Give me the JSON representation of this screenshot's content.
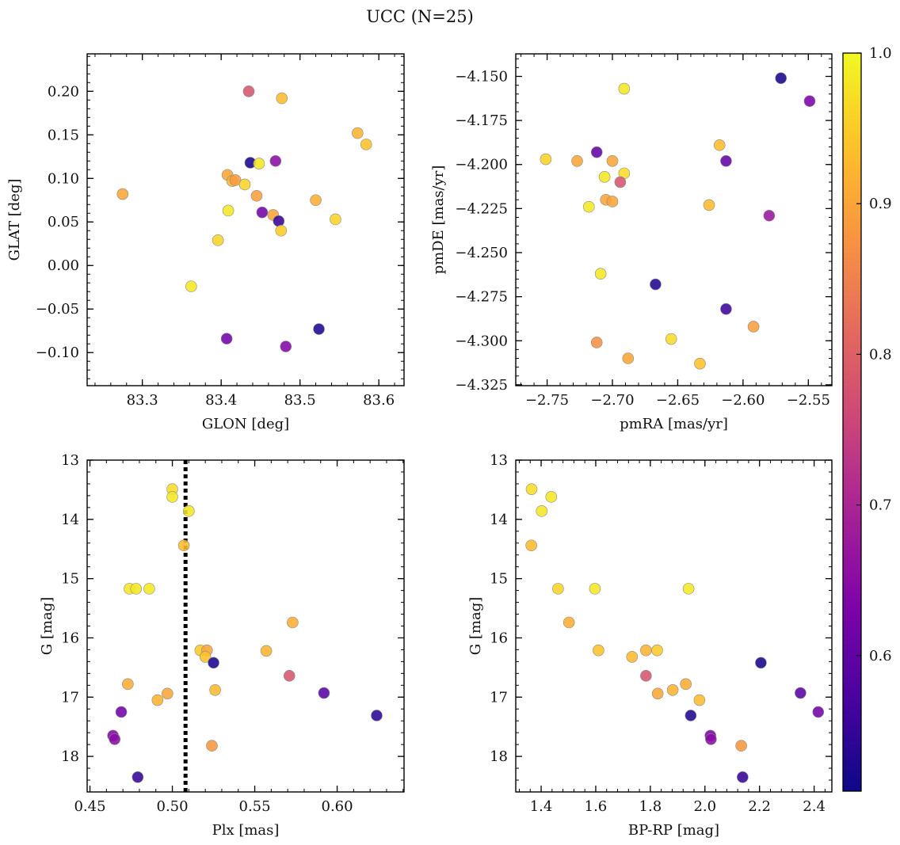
{
  "title": "UCC (N=25)",
  "colorbar": {
    "range": [
      0.51,
      1.0
    ],
    "ticks": [
      0.6,
      0.7,
      0.8,
      0.9,
      1.0
    ],
    "tick_labels": [
      "0.6",
      "0.7",
      "0.8",
      "0.9",
      "1.0"
    ],
    "colormap": "plasma"
  },
  "chart_data": [
    {
      "type": "scatter",
      "xlabel": "GLON [deg]",
      "ylabel": "GLAT [deg]",
      "xlim": [
        83.23,
        83.632
      ],
      "ylim": [
        -0.138,
        0.243
      ],
      "xticks": [
        83.3,
        83.4,
        83.5,
        83.6
      ],
      "xtick_labels": [
        "83.3",
        "83.4",
        "83.5",
        "83.6"
      ],
      "yticks": [
        -0.1,
        -0.05,
        0.0,
        0.05,
        0.1,
        0.15,
        0.2
      ],
      "ytick_labels": [
        "−0.10",
        "−0.05",
        "0.00",
        "0.05",
        "0.10",
        "0.15",
        "0.20"
      ],
      "points": [
        {
          "x": 83.435,
          "y": 0.2,
          "c": 0.78
        },
        {
          "x": 83.477,
          "y": 0.192,
          "c": 0.93
        },
        {
          "x": 83.573,
          "y": 0.152,
          "c": 0.92
        },
        {
          "x": 83.584,
          "y": 0.139,
          "c": 0.94
        },
        {
          "x": 83.437,
          "y": 0.118,
          "c": 0.52
        },
        {
          "x": 83.448,
          "y": 0.117,
          "c": 0.98
        },
        {
          "x": 83.469,
          "y": 0.12,
          "c": 0.65
        },
        {
          "x": 83.408,
          "y": 0.104,
          "c": 0.9
        },
        {
          "x": 83.414,
          "y": 0.097,
          "c": 0.92
        },
        {
          "x": 83.418,
          "y": 0.098,
          "c": 0.89
        },
        {
          "x": 83.43,
          "y": 0.093,
          "c": 0.96
        },
        {
          "x": 83.275,
          "y": 0.082,
          "c": 0.9
        },
        {
          "x": 83.445,
          "y": 0.08,
          "c": 0.89
        },
        {
          "x": 83.52,
          "y": 0.075,
          "c": 0.91
        },
        {
          "x": 83.409,
          "y": 0.063,
          "c": 0.98
        },
        {
          "x": 83.452,
          "y": 0.061,
          "c": 0.62
        },
        {
          "x": 83.466,
          "y": 0.058,
          "c": 0.9
        },
        {
          "x": 83.545,
          "y": 0.053,
          "c": 0.96
        },
        {
          "x": 83.473,
          "y": 0.051,
          "c": 0.55
        },
        {
          "x": 83.476,
          "y": 0.04,
          "c": 0.95
        },
        {
          "x": 83.396,
          "y": 0.029,
          "c": 0.96
        },
        {
          "x": 83.362,
          "y": -0.024,
          "c": 0.98
        },
        {
          "x": 83.524,
          "y": -0.073,
          "c": 0.53
        },
        {
          "x": 83.407,
          "y": -0.084,
          "c": 0.62
        },
        {
          "x": 83.482,
          "y": -0.093,
          "c": 0.64
        }
      ]
    },
    {
      "type": "scatter",
      "xlabel": "pmRA [mas/yr]",
      "ylabel": "pmDE [mas/yr]",
      "xlim": [
        -2.774,
        -2.532
      ],
      "ylim": [
        -4.3255,
        -4.1372
      ],
      "xticks": [
        -2.75,
        -2.7,
        -2.65,
        -2.6,
        -2.55
      ],
      "xtick_labels": [
        "−2.75",
        "−2.70",
        "−2.65",
        "−2.60",
        "−2.55"
      ],
      "yticks": [
        -4.325,
        -4.3,
        -4.275,
        -4.25,
        -4.225,
        -4.2,
        -4.175,
        -4.15
      ],
      "ytick_labels": [
        "−4.325",
        "−4.300",
        "−4.275",
        "−4.250",
        "−4.225",
        "−4.200",
        "−4.175",
        "−4.150"
      ],
      "points": [
        {
          "x": -2.571,
          "y": -4.151,
          "c": 0.52
        },
        {
          "x": -2.549,
          "y": -4.164,
          "c": 0.63
        },
        {
          "x": -2.691,
          "y": -4.157,
          "c": 0.98
        },
        {
          "x": -2.618,
          "y": -4.189,
          "c": 0.93
        },
        {
          "x": -2.712,
          "y": -4.193,
          "c": 0.6
        },
        {
          "x": -2.751,
          "y": -4.197,
          "c": 0.96
        },
        {
          "x": -2.727,
          "y": -4.198,
          "c": 0.9
        },
        {
          "x": -2.7,
          "y": -4.198,
          "c": 0.9
        },
        {
          "x": -2.613,
          "y": -4.198,
          "c": 0.6
        },
        {
          "x": -2.691,
          "y": -4.205,
          "c": 0.97
        },
        {
          "x": -2.706,
          "y": -4.207,
          "c": 0.98
        },
        {
          "x": -2.694,
          "y": -4.21,
          "c": 0.78
        },
        {
          "x": -2.705,
          "y": -4.22,
          "c": 0.9
        },
        {
          "x": -2.7,
          "y": -4.221,
          "c": 0.9
        },
        {
          "x": -2.626,
          "y": -4.223,
          "c": 0.93
        },
        {
          "x": -2.718,
          "y": -4.224,
          "c": 0.98
        },
        {
          "x": -2.58,
          "y": -4.229,
          "c": 0.67
        },
        {
          "x": -2.709,
          "y": -4.262,
          "c": 0.98
        },
        {
          "x": -2.667,
          "y": -4.268,
          "c": 0.53
        },
        {
          "x": -2.613,
          "y": -4.282,
          "c": 0.56
        },
        {
          "x": -2.592,
          "y": -4.292,
          "c": 0.89
        },
        {
          "x": -2.655,
          "y": -4.299,
          "c": 0.97
        },
        {
          "x": -2.712,
          "y": -4.301,
          "c": 0.87
        },
        {
          "x": -2.688,
          "y": -4.31,
          "c": 0.9
        },
        {
          "x": -2.633,
          "y": -4.313,
          "c": 0.94
        }
      ]
    },
    {
      "type": "scatter",
      "xlabel": "Plx [mas]",
      "ylabel": "G [mag]",
      "xlim": [
        0.4483,
        0.6406
      ],
      "ylim": [
        18.6,
        13.0
      ],
      "y_inverted": true,
      "xticks": [
        0.45,
        0.5,
        0.55,
        0.6
      ],
      "xtick_labels": [
        "0.45",
        "0.50",
        "0.55",
        "0.60"
      ],
      "yticks": [
        13,
        14,
        15,
        16,
        17,
        18
      ],
      "ytick_labels": [
        "13",
        "14",
        "15",
        "16",
        "17",
        "18"
      ],
      "vline": {
        "x": 0.508,
        "style": "dotted"
      },
      "points": [
        {
          "x": 0.5,
          "y": 13.49,
          "c": 0.97
        },
        {
          "x": 0.5,
          "y": 13.62,
          "c": 0.98
        },
        {
          "x": 0.51,
          "y": 13.86,
          "c": 0.98
        },
        {
          "x": 0.507,
          "y": 14.44,
          "c": 0.93
        },
        {
          "x": 0.474,
          "y": 15.17,
          "c": 0.98
        },
        {
          "x": 0.478,
          "y": 15.17,
          "c": 0.98
        },
        {
          "x": 0.486,
          "y": 15.17,
          "c": 0.98
        },
        {
          "x": 0.573,
          "y": 15.74,
          "c": 0.91
        },
        {
          "x": 0.517,
          "y": 16.21,
          "c": 0.95
        },
        {
          "x": 0.521,
          "y": 16.21,
          "c": 0.9
        },
        {
          "x": 0.557,
          "y": 16.22,
          "c": 0.92
        },
        {
          "x": 0.52,
          "y": 16.32,
          "c": 0.94
        },
        {
          "x": 0.525,
          "y": 16.42,
          "c": 0.52
        },
        {
          "x": 0.571,
          "y": 16.64,
          "c": 0.78
        },
        {
          "x": 0.473,
          "y": 16.78,
          "c": 0.91
        },
        {
          "x": 0.526,
          "y": 16.88,
          "c": 0.93
        },
        {
          "x": 0.592,
          "y": 16.93,
          "c": 0.59
        },
        {
          "x": 0.497,
          "y": 16.94,
          "c": 0.9
        },
        {
          "x": 0.491,
          "y": 17.05,
          "c": 0.92
        },
        {
          "x": 0.469,
          "y": 17.25,
          "c": 0.62
        },
        {
          "x": 0.624,
          "y": 17.31,
          "c": 0.54
        },
        {
          "x": 0.464,
          "y": 17.65,
          "c": 0.64
        },
        {
          "x": 0.465,
          "y": 17.71,
          "c": 0.65
        },
        {
          "x": 0.524,
          "y": 17.82,
          "c": 0.88
        },
        {
          "x": 0.479,
          "y": 18.35,
          "c": 0.55
        }
      ]
    },
    {
      "type": "scatter",
      "xlabel": "BP-RP [mag]",
      "ylabel": "G [mag]",
      "xlim": [
        1.307,
        2.465
      ],
      "ylim": [
        18.6,
        13.0
      ],
      "y_inverted": true,
      "xticks": [
        1.4,
        1.6,
        1.8,
        2.0,
        2.2,
        2.4
      ],
      "xtick_labels": [
        "1.4",
        "1.6",
        "1.8",
        "2.0",
        "2.2",
        "2.4"
      ],
      "yticks": [
        13,
        14,
        15,
        16,
        17,
        18
      ],
      "ytick_labels": [
        "13",
        "14",
        "15",
        "16",
        "17",
        "18"
      ],
      "points": [
        {
          "x": 1.365,
          "y": 13.49,
          "c": 0.97
        },
        {
          "x": 1.437,
          "y": 13.62,
          "c": 0.98
        },
        {
          "x": 1.402,
          "y": 13.86,
          "c": 0.98
        },
        {
          "x": 1.364,
          "y": 14.44,
          "c": 0.93
        },
        {
          "x": 1.462,
          "y": 15.17,
          "c": 0.96
        },
        {
          "x": 1.597,
          "y": 15.17,
          "c": 0.98
        },
        {
          "x": 1.94,
          "y": 15.17,
          "c": 0.98
        },
        {
          "x": 1.502,
          "y": 15.74,
          "c": 0.91
        },
        {
          "x": 1.61,
          "y": 16.21,
          "c": 0.94
        },
        {
          "x": 1.784,
          "y": 16.21,
          "c": 0.92
        },
        {
          "x": 1.825,
          "y": 16.21,
          "c": 0.95
        },
        {
          "x": 1.733,
          "y": 16.32,
          "c": 0.93
        },
        {
          "x": 2.205,
          "y": 16.42,
          "c": 0.52
        },
        {
          "x": 1.784,
          "y": 16.64,
          "c": 0.78
        },
        {
          "x": 1.93,
          "y": 16.78,
          "c": 0.91
        },
        {
          "x": 1.882,
          "y": 16.88,
          "c": 0.92
        },
        {
          "x": 1.827,
          "y": 16.94,
          "c": 0.9
        },
        {
          "x": 2.35,
          "y": 16.93,
          "c": 0.59
        },
        {
          "x": 1.98,
          "y": 17.05,
          "c": 0.93
        },
        {
          "x": 2.415,
          "y": 17.25,
          "c": 0.62
        },
        {
          "x": 1.948,
          "y": 17.31,
          "c": 0.53
        },
        {
          "x": 2.02,
          "y": 17.65,
          "c": 0.63
        },
        {
          "x": 2.022,
          "y": 17.71,
          "c": 0.65
        },
        {
          "x": 2.133,
          "y": 17.82,
          "c": 0.88
        },
        {
          "x": 2.138,
          "y": 18.35,
          "c": 0.55
        }
      ]
    }
  ]
}
